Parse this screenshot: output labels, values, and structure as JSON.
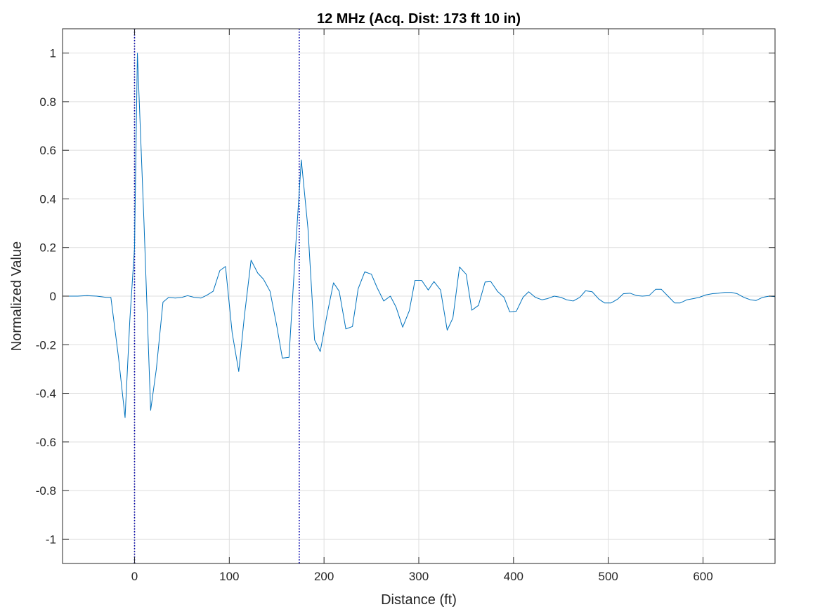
{
  "chart_data": {
    "type": "line",
    "title": "12 MHz (Acq. Dist: 173 ft 10 in)",
    "xlabel": "Distance (ft)",
    "ylabel": "Normalized Value",
    "xlim": [
      -76,
      676
    ],
    "ylim": [
      -1.1,
      1.1
    ],
    "xticks": [
      0,
      100,
      200,
      300,
      400,
      500,
      600
    ],
    "yticks": [
      -1,
      -0.8,
      -0.6,
      -0.4,
      -0.2,
      0,
      0.2,
      0.4,
      0.6,
      0.8,
      1
    ],
    "grid": true,
    "markers": [
      {
        "x": 0,
        "color": "#0000aa",
        "style": "dotted"
      },
      {
        "x": 173.83,
        "color": "#0000aa",
        "style": "dotted"
      }
    ],
    "series": [
      {
        "color": "#0072bd",
        "x": [
          -76,
          -60,
          -50,
          -40,
          -30,
          -25,
          -17,
          -10,
          -5,
          0,
          3,
          10,
          17,
          23,
          30,
          36,
          43,
          50,
          56,
          63,
          70,
          76,
          83,
          90,
          96,
          103,
          110,
          116,
          123,
          130,
          136,
          143,
          150,
          156,
          163,
          170,
          176,
          183,
          190,
          196,
          203,
          210,
          216,
          223,
          230,
          236,
          243,
          250,
          256,
          263,
          270,
          276,
          283,
          290,
          296,
          303,
          310,
          316,
          323,
          330,
          336,
          343,
          350,
          356,
          363,
          370,
          376,
          383,
          390,
          396,
          403,
          410,
          416,
          423,
          430,
          436,
          443,
          450,
          456,
          463,
          470,
          476,
          483,
          490,
          496,
          503,
          510,
          516,
          523,
          530,
          536,
          543,
          550,
          556,
          563,
          570,
          576,
          583,
          590,
          596,
          603,
          610,
          616,
          623,
          630,
          636,
          643,
          650,
          656,
          663,
          670,
          676
        ],
        "y": [
          0.0,
          0.0,
          0.002,
          0.0,
          -0.005,
          -0.005,
          -0.25,
          -0.5,
          -0.1,
          0.2,
          1.0,
          0.3,
          -0.47,
          -0.3,
          -0.025,
          -0.005,
          -0.008,
          -0.005,
          0.002,
          -0.005,
          -0.008,
          0.003,
          0.02,
          0.105,
          0.122,
          -0.15,
          -0.31,
          -0.08,
          0.148,
          0.095,
          0.07,
          0.02,
          -0.12,
          -0.255,
          -0.252,
          0.2,
          0.56,
          0.28,
          -0.18,
          -0.228,
          -0.08,
          0.055,
          0.02,
          -0.135,
          -0.125,
          0.03,
          0.1,
          0.09,
          0.035,
          -0.02,
          0.0,
          -0.045,
          -0.128,
          -0.06,
          0.065,
          0.065,
          0.025,
          0.06,
          0.025,
          -0.14,
          -0.09,
          0.12,
          0.09,
          -0.058,
          -0.038,
          0.058,
          0.06,
          0.02,
          -0.005,
          -0.065,
          -0.062,
          -0.005,
          0.018,
          -0.005,
          -0.015,
          -0.01,
          0.0,
          -0.005,
          -0.015,
          -0.02,
          -0.005,
          0.022,
          0.018,
          -0.012,
          -0.028,
          -0.028,
          -0.012,
          0.01,
          0.012,
          0.002,
          0.0,
          0.002,
          0.028,
          0.028,
          0.0,
          -0.028,
          -0.028,
          -0.015,
          -0.01,
          -0.005,
          0.005,
          0.01,
          0.012,
          0.015,
          0.015,
          0.01,
          -0.005,
          -0.015,
          -0.018,
          -0.005,
          0.0,
          -0.002
        ]
      }
    ]
  }
}
